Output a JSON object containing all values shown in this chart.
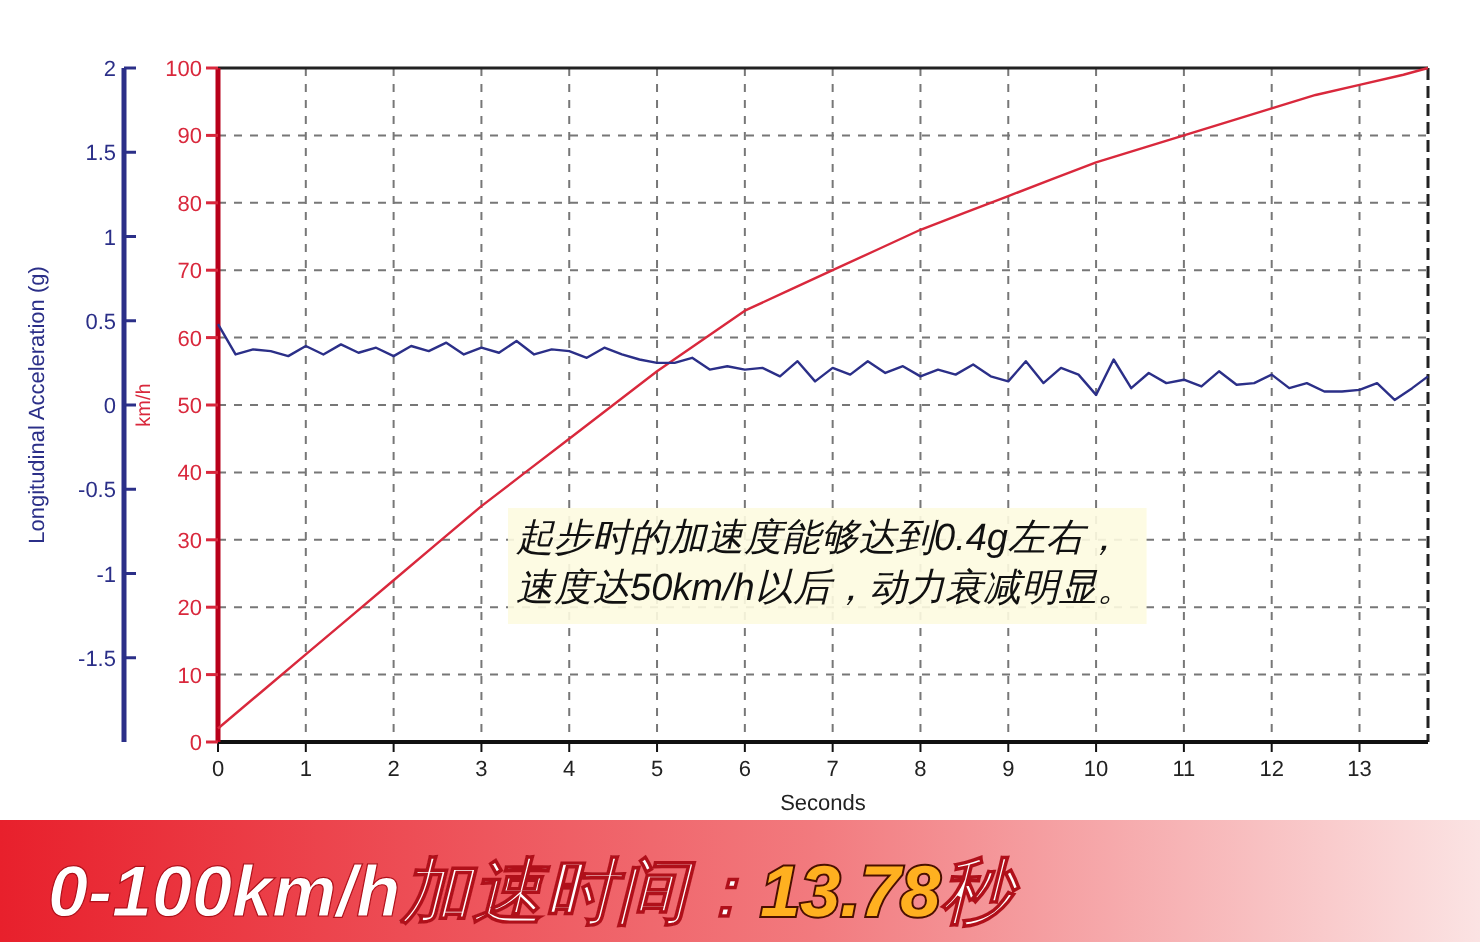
{
  "chart_data": {
    "type": "line",
    "title": "0-100km/h加速时间：13.78秒",
    "xlabel": "Seconds",
    "ylabel": "km/h",
    "y2label": "Longitudinal Acceleration (g)",
    "annotations": [
      "起步时的加速度能够达到0.4g左右，",
      "速度达50km/h以后，动力衰减明显。"
    ],
    "xlim": [
      0,
      13.78
    ],
    "xticks": [
      0,
      1,
      2,
      3,
      4,
      5,
      6,
      7,
      8,
      9,
      10,
      11,
      12,
      13
    ],
    "ylim": [
      0,
      100
    ],
    "yticks": [
      0,
      10,
      20,
      30,
      40,
      50,
      60,
      70,
      80,
      90,
      100
    ],
    "y2lim": [
      -2,
      2
    ],
    "y2ticks": [
      -1.5,
      -1,
      -0.5,
      0,
      0.5,
      1,
      1.5,
      2
    ],
    "grid": true,
    "line_style": "solid",
    "series": [
      {
        "color": "#d9283c",
        "x": [
          0,
          0.5,
          1,
          1.5,
          2,
          2.5,
          3,
          3.5,
          4,
          4.5,
          5,
          5.5,
          6,
          6.5,
          7,
          7.5,
          8,
          8.5,
          9,
          9.5,
          10,
          10.5,
          11,
          11.5,
          12,
          12.5,
          13,
          13.5,
          13.78
        ],
        "values": [
          2,
          7.5,
          13,
          18.5,
          24,
          29.5,
          35,
          40,
          45,
          50,
          55,
          59.5,
          64,
          67,
          70,
          73,
          76,
          78.5,
          81,
          83.5,
          86,
          88,
          90,
          92,
          94,
          96,
          97.5,
          99,
          100
        ]
      },
      {
        "color": "#2b2f88",
        "axis": "y2",
        "x": [
          0,
          0.2,
          0.4,
          0.6,
          0.8,
          1,
          1.2,
          1.4,
          1.6,
          1.8,
          2,
          2.2,
          2.4,
          2.6,
          2.8,
          3,
          3.2,
          3.4,
          3.6,
          3.8,
          4,
          4.2,
          4.4,
          4.6,
          4.8,
          5,
          5.2,
          5.4,
          5.6,
          5.8,
          6,
          6.2,
          6.4,
          6.6,
          6.8,
          7,
          7.2,
          7.4,
          7.6,
          7.8,
          8,
          8.2,
          8.4,
          8.6,
          8.8,
          9,
          9.2,
          9.4,
          9.6,
          9.8,
          10,
          10.2,
          10.4,
          10.6,
          10.8,
          11,
          11.2,
          11.4,
          11.6,
          11.8,
          12,
          12.2,
          12.4,
          12.6,
          12.8,
          13,
          13.2,
          13.4,
          13.6,
          13.78
        ],
        "values": [
          0.48,
          0.3,
          0.33,
          0.32,
          0.29,
          0.35,
          0.3,
          0.36,
          0.31,
          0.34,
          0.29,
          0.35,
          0.32,
          0.37,
          0.3,
          0.34,
          0.31,
          0.38,
          0.3,
          0.33,
          0.32,
          0.28,
          0.34,
          0.3,
          0.27,
          0.25,
          0.25,
          0.28,
          0.21,
          0.23,
          0.21,
          0.22,
          0.17,
          0.26,
          0.14,
          0.22,
          0.18,
          0.26,
          0.19,
          0.23,
          0.17,
          0.21,
          0.18,
          0.24,
          0.17,
          0.14,
          0.26,
          0.13,
          0.22,
          0.18,
          0.06,
          0.27,
          0.1,
          0.19,
          0.13,
          0.15,
          0.11,
          0.2,
          0.12,
          0.13,
          0.18,
          0.1,
          0.13,
          0.08,
          0.08,
          0.09,
          0.13,
          0.03,
          0.1,
          0.17
        ]
      }
    ]
  }
}
